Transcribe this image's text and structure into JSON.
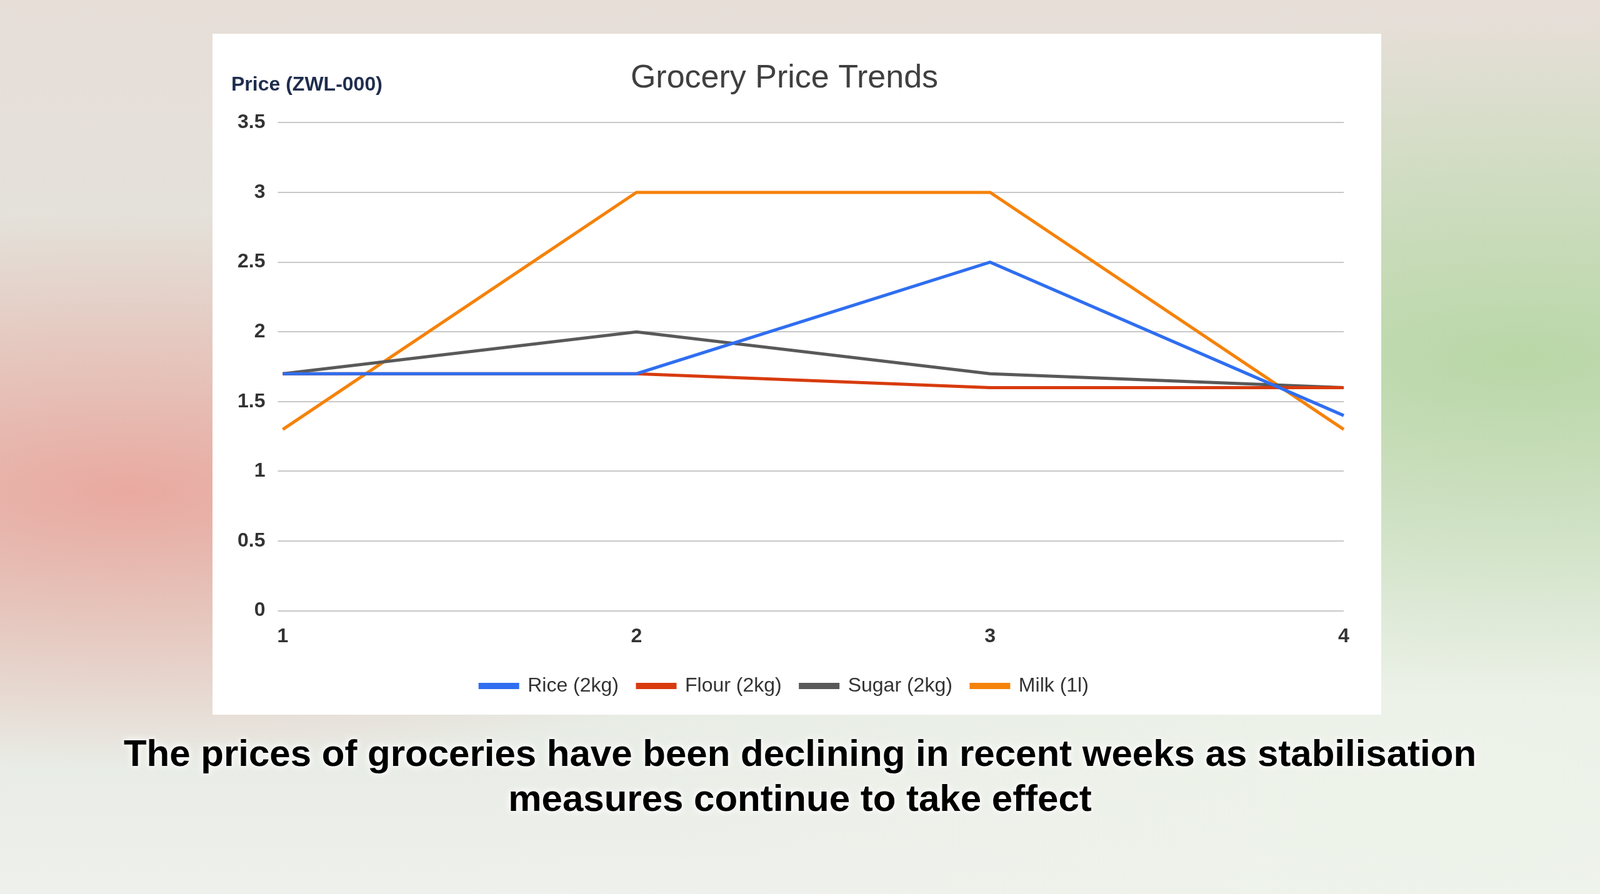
{
  "chart_data": {
    "type": "line",
    "title": "Grocery Price Trends",
    "y_label": "Price  (ZWL-000)",
    "caption": "The prices of groceries have been declining in recent weeks as stabilisation measures continue to take effect",
    "categories": [
      "1",
      "2",
      "3",
      "4"
    ],
    "series": [
      {
        "name": "Rice (2kg)",
        "color": "#2f6ef0",
        "values": [
          1.7,
          1.7,
          2.5,
          1.4
        ]
      },
      {
        "name": "Flour (2kg)",
        "color": "#d83b0e",
        "values": [
          1.7,
          1.7,
          1.6,
          1.6
        ]
      },
      {
        "name": "Sugar (2kg)",
        "color": "#595959",
        "values": [
          1.7,
          2.0,
          1.7,
          1.6
        ]
      },
      {
        "name": "Milk (1l)",
        "color": "#f5820a",
        "values": [
          1.3,
          3.0,
          3.0,
          1.3
        ]
      }
    ],
    "ylim": [
      0,
      3.5
    ],
    "yticks": [
      0,
      0.5,
      1,
      1.5,
      2,
      2.5,
      3,
      3.5
    ],
    "grid": true,
    "legend": "bottom"
  }
}
